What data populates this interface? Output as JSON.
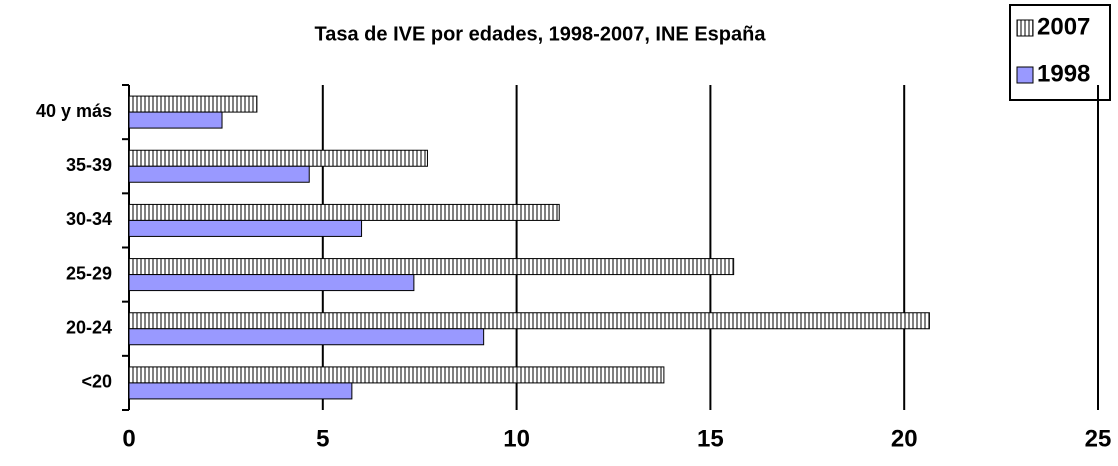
{
  "chart_data": {
    "type": "hbar",
    "title": "Tasa de IVE por edades, 1998-2007, INE España",
    "categories": [
      "<20",
      "20-24",
      "25-29",
      "30-34",
      "35-39",
      "40 y más"
    ],
    "series": [
      {
        "name": "2007",
        "color": "#808080",
        "values": [
          13.8,
          20.65,
          15.6,
          11.1,
          7.7,
          3.3
        ]
      },
      {
        "name": "1998",
        "color": "#9999ff",
        "values": [
          5.75,
          9.15,
          7.35,
          6.0,
          4.65,
          2.4
        ]
      }
    ],
    "xlim": [
      0,
      25
    ],
    "xticks": [
      0,
      5,
      10,
      15,
      20,
      25
    ],
    "grid": true,
    "legend": "top-right"
  }
}
